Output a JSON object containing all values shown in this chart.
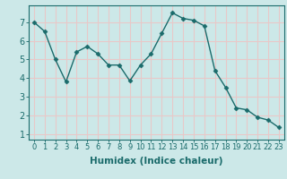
{
  "x": [
    0,
    1,
    2,
    3,
    4,
    5,
    6,
    7,
    8,
    9,
    10,
    11,
    12,
    13,
    14,
    15,
    16,
    17,
    18,
    19,
    20,
    21,
    22,
    23
  ],
  "y": [
    7.0,
    6.5,
    5.0,
    3.8,
    5.4,
    5.7,
    5.3,
    4.7,
    4.7,
    3.85,
    4.7,
    5.3,
    6.4,
    7.5,
    7.2,
    7.1,
    6.8,
    4.4,
    3.5,
    2.4,
    2.3,
    1.9,
    1.75,
    1.35
  ],
  "line_color": "#1a6b6b",
  "marker": "D",
  "markersize": 2.5,
  "linewidth": 1.0,
  "bg_color": "#cce8e8",
  "grid_color": "#e8c8c8",
  "xlabel": "Humidex (Indice chaleur)",
  "xlim": [
    -0.5,
    23.5
  ],
  "ylim": [
    0.7,
    7.9
  ],
  "yticks": [
    1,
    2,
    3,
    4,
    5,
    6,
    7
  ],
  "xticks": [
    0,
    1,
    2,
    3,
    4,
    5,
    6,
    7,
    8,
    9,
    10,
    11,
    12,
    13,
    14,
    15,
    16,
    17,
    18,
    19,
    20,
    21,
    22,
    23
  ],
  "xtick_labels": [
    "0",
    "1",
    "2",
    "3",
    "4",
    "5",
    "6",
    "7",
    "8",
    "9",
    "10",
    "11",
    "12",
    "13",
    "14",
    "15",
    "16",
    "17",
    "18",
    "19",
    "20",
    "21",
    "22",
    "23"
  ],
  "tick_color": "#1a6b6b",
  "xlabel_fontsize": 7.5,
  "tick_fontsize": 6
}
